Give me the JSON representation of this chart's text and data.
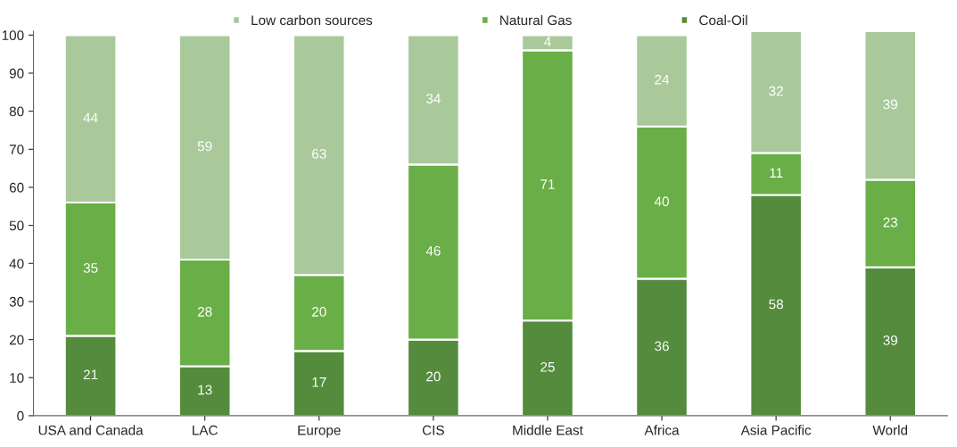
{
  "chart_data": {
    "type": "bar",
    "stacked": true,
    "categories": [
      "USA and Canada",
      "LAC",
      "Europe",
      "CIS",
      "Middle East",
      "Africa",
      "Asia Pacific",
      "World"
    ],
    "series": [
      {
        "name": "Coal-Oil",
        "color": "#548b3c",
        "values": [
          21,
          13,
          17,
          20,
          25,
          36,
          58,
          39
        ]
      },
      {
        "name": "Natural Gas",
        "color": "#6aae48",
        "values": [
          35,
          28,
          20,
          46,
          71,
          40,
          11,
          23
        ]
      },
      {
        "name": "Low carbon sources",
        "color": "#a9c99a",
        "values": [
          44,
          59,
          63,
          34,
          4,
          24,
          32,
          39
        ]
      }
    ],
    "ylim": [
      0,
      101
    ],
    "yticks": [
      0,
      10,
      20,
      30,
      40,
      50,
      60,
      70,
      80,
      90,
      100
    ],
    "data_labels": true,
    "legend": "top",
    "grid": false
  }
}
